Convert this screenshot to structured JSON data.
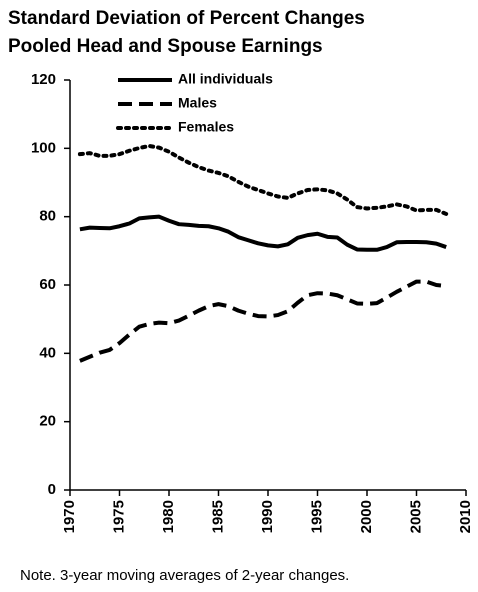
{
  "chart_data": {
    "type": "line",
    "title": [
      "Standard Deviation of Percent Changes",
      "Pooled Head and Spouse Earnings"
    ],
    "note": "Note. 3-year moving averages of 2-year changes.",
    "x": [
      1971,
      1972,
      1973,
      1974,
      1975,
      1976,
      1977,
      1978,
      1979,
      1980,
      1981,
      1982,
      1983,
      1984,
      1985,
      1986,
      1987,
      1988,
      1989,
      1990,
      1991,
      1992,
      1993,
      1994,
      1995,
      1996,
      1997,
      1998,
      1999,
      2000,
      2001,
      2002,
      2003,
      2004,
      2005,
      2006,
      2007,
      2008
    ],
    "series": [
      {
        "name": "All individuals",
        "color": "#000000",
        "dash": "solid",
        "values": [
          76.3,
          76.8,
          76.7,
          76.6,
          77.2,
          78,
          79.5,
          79.8,
          80,
          78.8,
          77.8,
          77.6,
          77.3,
          77.2,
          76.6,
          75.6,
          74,
          73.1,
          72.2,
          71.6,
          71.3,
          71.9,
          73.8,
          74.6,
          75,
          74.1,
          73.9,
          71.8,
          70.4,
          70.3,
          70.3,
          71.1,
          72.5,
          72.6,
          72.6,
          72.5,
          72.1,
          71.1
        ]
      },
      {
        "name": "Males",
        "color": "#000000",
        "dash": "dashed",
        "values": [
          37.8,
          39,
          40.2,
          41,
          43,
          45.5,
          47.8,
          48.6,
          49,
          48.8,
          49.6,
          51,
          52.5,
          53.8,
          54.4,
          53.8,
          52.5,
          51.6,
          50.9,
          50.8,
          51.2,
          52.3,
          54.8,
          57,
          57.6,
          57.5,
          57,
          55.8,
          54.6,
          54.5,
          54.7,
          56.3,
          58,
          59.5,
          61,
          61,
          60,
          59.7
        ]
      },
      {
        "name": "Females",
        "color": "#000000",
        "dash": "dotted",
        "values": [
          98.3,
          98.6,
          97.8,
          97.8,
          98.3,
          99.3,
          100.1,
          100.7,
          100.2,
          99,
          97.3,
          95.8,
          94.5,
          93.5,
          92.8,
          91.8,
          90.2,
          88.8,
          87.8,
          86.8,
          85.9,
          85.5,
          86.8,
          87.8,
          88,
          87.7,
          86.8,
          85,
          82.8,
          82.4,
          82.6,
          83,
          83.6,
          83,
          81.8,
          82,
          82,
          80.8
        ]
      }
    ],
    "xlim": [
      1970,
      2010
    ],
    "xticks": [
      1970,
      1975,
      1980,
      1985,
      1990,
      1995,
      2000,
      2005,
      2010
    ],
    "ylim": [
      0,
      120
    ],
    "yticks": [
      0,
      20,
      40,
      60,
      80,
      100,
      120
    ],
    "grid": false,
    "legend": "top"
  }
}
